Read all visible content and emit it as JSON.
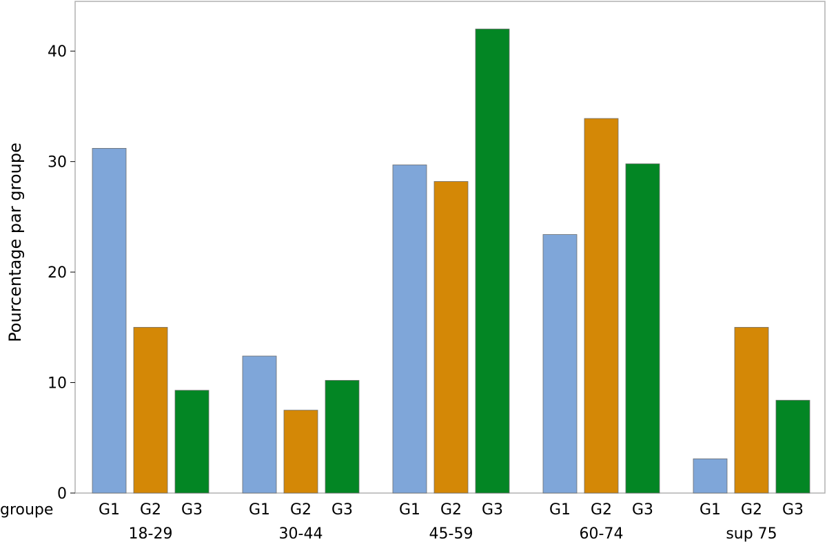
{
  "chart_data": {
    "type": "bar",
    "ylabel": "Pourcentage par groupe",
    "x_row_label": "groupe",
    "ylim": [
      0,
      44.5
    ],
    "yticks": [
      0,
      10,
      20,
      30,
      40
    ],
    "grid": false,
    "categories": [
      "18-29",
      "30-44",
      "45-59",
      "60-74",
      "sup 75"
    ],
    "subcategories": [
      "G1",
      "G2",
      "G3"
    ],
    "series": [
      {
        "name": "G1",
        "color": "#7fa6d9",
        "values": [
          31.2,
          12.4,
          29.7,
          23.4,
          3.1
        ]
      },
      {
        "name": "G2",
        "color": "#d48806",
        "values": [
          15.0,
          7.5,
          28.2,
          33.9,
          15.0
        ]
      },
      {
        "name": "G3",
        "color": "#038624",
        "values": [
          9.3,
          10.2,
          42.0,
          29.8,
          8.4
        ]
      }
    ]
  }
}
